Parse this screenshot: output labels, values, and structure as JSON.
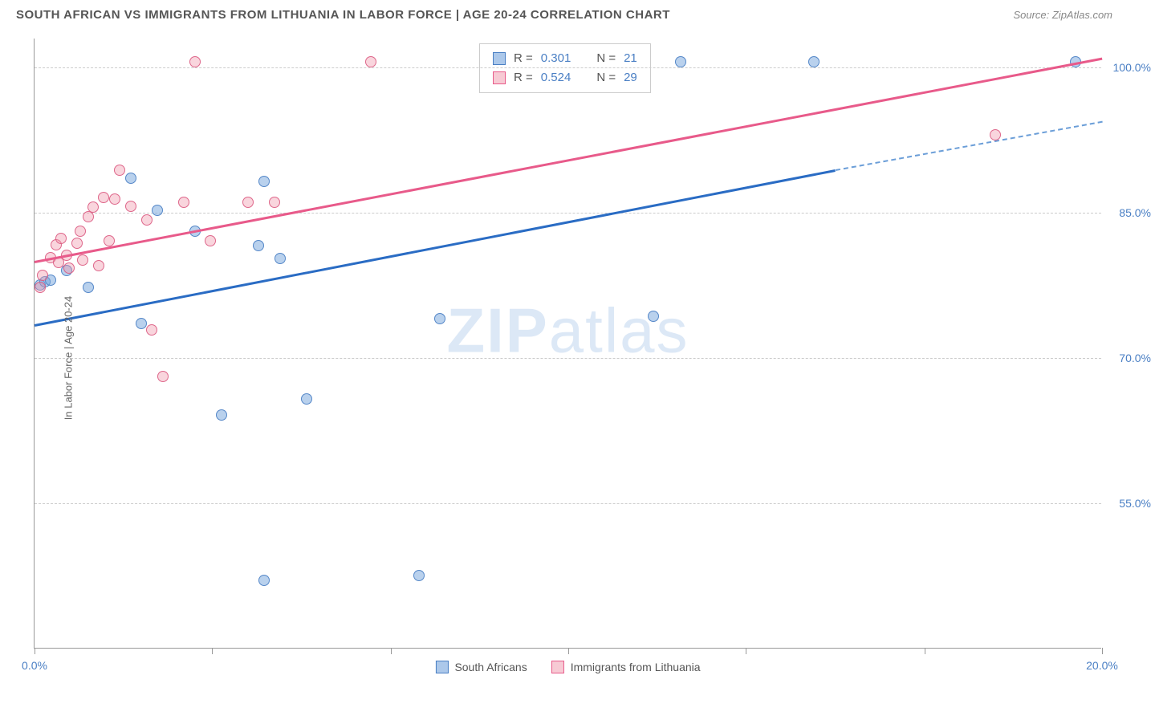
{
  "title": "SOUTH AFRICAN VS IMMIGRANTS FROM LITHUANIA IN LABOR FORCE | AGE 20-24 CORRELATION CHART",
  "source": "Source: ZipAtlas.com",
  "y_axis_label": "In Labor Force | Age 20-24",
  "watermark_bold": "ZIP",
  "watermark_light": "atlas",
  "chart": {
    "type": "scatter",
    "xlim": [
      0,
      20
    ],
    "ylim": [
      40,
      103
    ],
    "x_ticks": [
      0,
      3.33,
      6.67,
      10,
      13.33,
      16.67,
      20
    ],
    "x_tick_labels": {
      "0": "0.0%",
      "20": "20.0%"
    },
    "y_gridlines": [
      55,
      70,
      85,
      100
    ],
    "y_tick_labels": {
      "55": "55.0%",
      "70": "70.0%",
      "85": "85.0%",
      "100": "100.0%"
    },
    "background_color": "#ffffff",
    "grid_color": "#cccccc",
    "axis_color": "#999999",
    "label_color": "#4a7fc4",
    "series": [
      {
        "name": "South Africans",
        "color_fill": "rgba(116,164,220,0.5)",
        "color_stroke": "#4a7fc4",
        "marker_size": 14,
        "R": "0.301",
        "N": "21",
        "trend": {
          "x1": 0,
          "y1": 73.5,
          "x2": 15,
          "y2": 89.5,
          "dash_from_x": 15,
          "dash_to_x": 20,
          "dash_y2": 94.5,
          "line_color": "#2a6cc4",
          "line_width": 2.5
        },
        "points": [
          [
            0.1,
            77.5
          ],
          [
            0.2,
            77.8
          ],
          [
            0.3,
            78
          ],
          [
            0.6,
            79
          ],
          [
            1.0,
            77.2
          ],
          [
            1.8,
            88.5
          ],
          [
            2.0,
            73.5
          ],
          [
            2.3,
            85.2
          ],
          [
            3.0,
            83
          ],
          [
            3.5,
            64
          ],
          [
            4.2,
            81.5
          ],
          [
            4.3,
            88.2
          ],
          [
            4.6,
            80.2
          ],
          [
            4.3,
            47
          ],
          [
            5.1,
            65.7
          ],
          [
            7.2,
            47.5
          ],
          [
            7.6,
            74
          ],
          [
            11.6,
            74.2
          ],
          [
            12.1,
            100.5
          ],
          [
            14.6,
            100.5
          ],
          [
            19.5,
            100.5
          ]
        ]
      },
      {
        "name": "Immigrants from Lithuania",
        "color_fill": "rgba(240,150,170,0.4)",
        "color_stroke": "#e85a8a",
        "marker_size": 14,
        "R": "0.524",
        "N": "29",
        "trend": {
          "x1": 0,
          "y1": 80,
          "x2": 20,
          "y2": 101,
          "line_color": "#e85a8a",
          "line_width": 2.5
        },
        "points": [
          [
            0.1,
            77.2
          ],
          [
            0.15,
            78.5
          ],
          [
            0.3,
            80.3
          ],
          [
            0.4,
            81.6
          ],
          [
            0.45,
            79.8
          ],
          [
            0.5,
            82.3
          ],
          [
            0.6,
            80.5
          ],
          [
            0.65,
            79.2
          ],
          [
            0.8,
            81.8
          ],
          [
            0.85,
            83
          ],
          [
            0.9,
            80
          ],
          [
            1.0,
            84.5
          ],
          [
            1.1,
            85.5
          ],
          [
            1.2,
            79.5
          ],
          [
            1.3,
            86.5
          ],
          [
            1.4,
            82
          ],
          [
            1.5,
            86.3
          ],
          [
            1.6,
            89.3
          ],
          [
            1.8,
            85.6
          ],
          [
            2.1,
            84.2
          ],
          [
            2.2,
            72.8
          ],
          [
            2.4,
            68
          ],
          [
            2.8,
            86
          ],
          [
            3.0,
            100.5
          ],
          [
            3.3,
            82
          ],
          [
            4.0,
            86
          ],
          [
            4.5,
            86
          ],
          [
            6.3,
            100.5
          ],
          [
            18.0,
            93
          ]
        ]
      }
    ]
  },
  "stat_box": {
    "rows": [
      {
        "series_class": "blue",
        "r_label": "R =",
        "r_val": "0.301",
        "n_label": "N =",
        "n_val": "21"
      },
      {
        "series_class": "pink",
        "r_label": "R =",
        "r_val": "0.524",
        "n_label": "N =",
        "n_val": "29"
      }
    ]
  },
  "bottom_legend": [
    {
      "series_class": "blue",
      "label": "South Africans"
    },
    {
      "series_class": "pink",
      "label": "Immigrants from Lithuania"
    }
  ]
}
